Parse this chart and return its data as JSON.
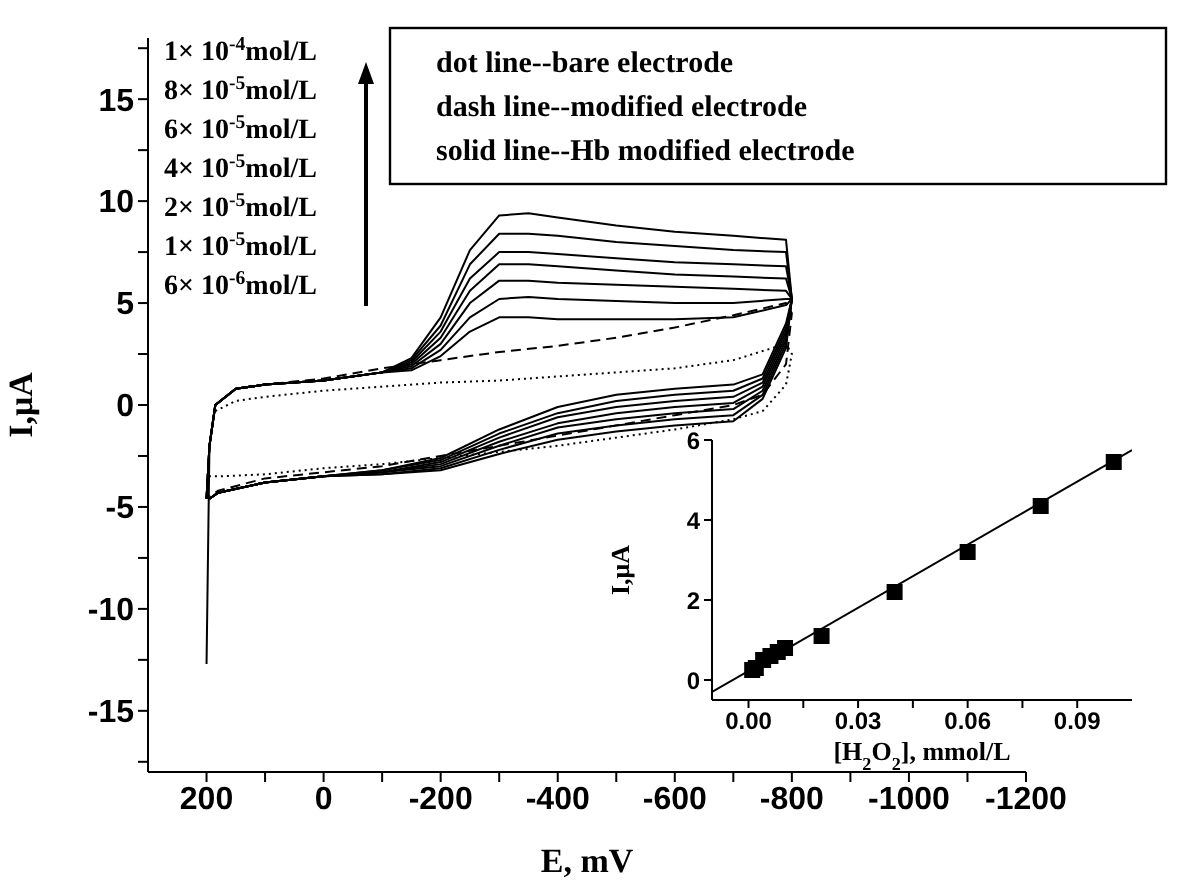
{
  "chart_data": [
    {
      "type": "line",
      "xlabel": "E, mV",
      "ylabel": "I,μA",
      "xlim": [
        300,
        -1200
      ],
      "xticks": [
        200,
        {
          "value": 100,
          "label": null
        },
        0,
        {
          "value": -100,
          "label": null
        },
        -200,
        {
          "value": -300,
          "label": null
        },
        -400,
        {
          "value": -500,
          "label": null
        },
        -600,
        {
          "value": -700,
          "label": null
        },
        -800,
        {
          "value": -900,
          "label": null
        },
        -1000,
        {
          "value": -1100,
          "label": null
        },
        -1200
      ],
      "ylim": [
        -18,
        18
      ],
      "yticks": [
        {
          "value": -17.5,
          "label": null
        },
        -15,
        {
          "value": -12.5,
          "label": null
        },
        -10,
        {
          "value": -7.5,
          "label": null
        },
        -5,
        {
          "value": -2.5,
          "label": null
        },
        0,
        {
          "value": 2.5,
          "label": null
        },
        5,
        {
          "value": 7.5,
          "label": null
        },
        10,
        {
          "value": 12.5,
          "label": null
        },
        15,
        {
          "value": 17.5,
          "label": null
        }
      ],
      "marker": "none",
      "annotations": [
        "dot line--bare electrode",
        "dash line--modified electrode",
        "solid line--Hb modified electrode",
        "1× 10$^{-4}$mol/L",
        "8× 10$^{-5}$mol/L",
        "6× 10$^{-5}$mol/L",
        "4× 10$^{-5}$mol/L",
        "2× 10$^{-5}$mol/L",
        "1× 10$^{-5}$mol/L",
        "6× 10$^{-6}$mol/L"
      ],
      "series": [
        {
          "color": "#000000",
          "line_style": "solid",
          "x": [
            200,
            195,
            185,
            150,
            100,
            0,
            -100,
            -150,
            -200,
            -250,
            -300,
            -350,
            -400,
            -500,
            -600,
            -700,
            -790,
            -800,
            -790,
            -750,
            -700,
            -600,
            -500,
            -400,
            -300,
            -200,
            -100,
            0,
            100,
            180,
            195
          ],
          "values": [
            -12.7,
            -2.0,
            0.0,
            0.8,
            1.0,
            1.2,
            1.6,
            2.3,
            4.3,
            7.6,
            9.3,
            9.4,
            9.2,
            8.8,
            8.5,
            8.3,
            8.1,
            5.2,
            4.0,
            1.5,
            1.0,
            0.8,
            0.5,
            -0.1,
            -1.2,
            -2.6,
            -3.2,
            -3.5,
            -3.8,
            -4.3,
            -4.6
          ]
        },
        {
          "color": "#000000",
          "line_style": "solid",
          "x": [
            200,
            195,
            185,
            150,
            100,
            0,
            -100,
            -150,
            -200,
            -250,
            -300,
            -350,
            -400,
            -500,
            -600,
            -700,
            -790,
            -800,
            -790,
            -750,
            -700,
            -600,
            -500,
            -400,
            -300,
            -200,
            -100,
            0,
            100,
            180,
            195
          ],
          "values": [
            -4.6,
            -2.0,
            0.0,
            0.8,
            1.0,
            1.2,
            1.6,
            2.2,
            3.9,
            6.9,
            8.4,
            8.4,
            8.3,
            8.0,
            7.8,
            7.6,
            7.5,
            5.2,
            3.8,
            1.3,
            0.7,
            0.5,
            0.2,
            -0.4,
            -1.4,
            -2.7,
            -3.2,
            -3.5,
            -3.8,
            -4.3,
            -4.6
          ]
        },
        {
          "color": "#000000",
          "line_style": "solid",
          "x": [
            200,
            195,
            185,
            150,
            100,
            0,
            -100,
            -150,
            -200,
            -250,
            -300,
            -350,
            -400,
            -500,
            -600,
            -700,
            -790,
            -800,
            -790,
            -750,
            -700,
            -600,
            -500,
            -400,
            -300,
            -200,
            -100,
            0,
            100,
            180,
            195
          ],
          "values": [
            -4.6,
            -2.0,
            0.0,
            0.8,
            1.0,
            1.2,
            1.6,
            2.1,
            3.6,
            6.2,
            7.5,
            7.5,
            7.4,
            7.2,
            7.0,
            6.9,
            6.8,
            5.2,
            3.6,
            1.1,
            0.4,
            0.2,
            -0.1,
            -0.6,
            -1.6,
            -2.8,
            -3.3,
            -3.5,
            -3.8,
            -4.3,
            -4.6
          ]
        },
        {
          "color": "#000000",
          "line_style": "solid",
          "x": [
            200,
            195,
            185,
            150,
            100,
            0,
            -100,
            -150,
            -200,
            -250,
            -300,
            -350,
            -400,
            -500,
            -600,
            -700,
            -790,
            -800,
            -790,
            -750,
            -700,
            -600,
            -500,
            -400,
            -300,
            -200,
            -100,
            0,
            100,
            180,
            195
          ],
          "values": [
            -4.6,
            -2.0,
            0.0,
            0.8,
            1.0,
            1.2,
            1.6,
            2.0,
            3.3,
            5.6,
            6.9,
            6.9,
            6.8,
            6.6,
            6.4,
            6.3,
            6.2,
            5.2,
            3.4,
            0.9,
            0.1,
            -0.1,
            -0.4,
            -0.9,
            -1.8,
            -2.9,
            -3.3,
            -3.5,
            -3.8,
            -4.3,
            -4.6
          ]
        },
        {
          "color": "#000000",
          "line_style": "solid",
          "x": [
            200,
            195,
            185,
            150,
            100,
            0,
            -100,
            -150,
            -200,
            -250,
            -300,
            -350,
            -400,
            -500,
            -600,
            -700,
            -790,
            -800,
            -790,
            -750,
            -700,
            -600,
            -500,
            -400,
            -300,
            -200,
            -100,
            0,
            100,
            180,
            195
          ],
          "values": [
            -4.6,
            -2.0,
            0.0,
            0.8,
            1.0,
            1.2,
            1.6,
            1.9,
            3.0,
            5.0,
            6.1,
            6.1,
            6.0,
            5.9,
            5.8,
            5.7,
            5.6,
            5.2,
            3.2,
            0.7,
            -0.2,
            -0.4,
            -0.7,
            -1.1,
            -2.0,
            -3.0,
            -3.3,
            -3.5,
            -3.8,
            -4.3,
            -4.6
          ]
        },
        {
          "color": "#000000",
          "line_style": "solid",
          "x": [
            200,
            195,
            185,
            150,
            100,
            0,
            -100,
            -150,
            -200,
            -250,
            -300,
            -350,
            -400,
            -500,
            -600,
            -700,
            -790,
            -800,
            -790,
            -750,
            -700,
            -600,
            -500,
            -400,
            -300,
            -200,
            -100,
            0,
            100,
            180,
            195
          ],
          "values": [
            -4.6,
            -2.0,
            0.0,
            0.8,
            1.0,
            1.2,
            1.6,
            1.8,
            2.7,
            4.3,
            5.2,
            5.3,
            5.2,
            5.1,
            5.0,
            5.0,
            5.2,
            5.2,
            3.0,
            0.5,
            -0.5,
            -0.7,
            -1.0,
            -1.4,
            -2.2,
            -3.1,
            -3.4,
            -3.5,
            -3.8,
            -4.3,
            -4.6
          ]
        },
        {
          "color": "#000000",
          "line_style": "solid",
          "x": [
            200,
            195,
            185,
            150,
            100,
            0,
            -100,
            -150,
            -200,
            -250,
            -300,
            -350,
            -400,
            -500,
            -600,
            -700,
            -790,
            -800,
            -790,
            -750,
            -700,
            -600,
            -500,
            -400,
            -300,
            -200,
            -100,
            0,
            100,
            180,
            195
          ],
          "values": [
            -4.6,
            -2.0,
            0.0,
            0.8,
            1.0,
            1.2,
            1.6,
            1.7,
            2.4,
            3.6,
            4.3,
            4.3,
            4.2,
            4.2,
            4.2,
            4.3,
            4.9,
            5.2,
            2.8,
            0.3,
            -0.8,
            -1.0,
            -1.3,
            -1.7,
            -2.4,
            -3.2,
            -3.4,
            -3.5,
            -3.8,
            -4.3,
            -4.6
          ]
        },
        {
          "color": "#000000",
          "line_style": "dashed",
          "x": [
            185,
            150,
            100,
            0,
            -100,
            -200,
            -300,
            -400,
            -500,
            -600,
            -700,
            -790,
            -800,
            -790,
            -750,
            -700,
            -600,
            -500,
            -400,
            -300,
            -200,
            -100,
            0,
            100,
            180,
            195
          ],
          "values": [
            0.0,
            0.8,
            1.0,
            1.3,
            1.8,
            2.2,
            2.6,
            2.9,
            3.3,
            3.8,
            4.4,
            5.0,
            4.5,
            2.0,
            0.5,
            0.0,
            -0.5,
            -1.0,
            -1.5,
            -2.0,
            -2.5,
            -3.0,
            -3.3,
            -3.6,
            -4.2,
            -4.5
          ]
        },
        {
          "color": "#000000",
          "line_style": "dotted",
          "x": [
            185,
            150,
            100,
            0,
            -100,
            -200,
            -300,
            -400,
            -500,
            -600,
            -700,
            -790,
            -800,
            -790,
            -750,
            -700,
            -600,
            -500,
            -400,
            -300,
            -200,
            -100,
            0,
            100,
            180,
            195
          ],
          "values": [
            -0.3,
            0.2,
            0.4,
            0.7,
            0.9,
            1.1,
            1.2,
            1.4,
            1.6,
            1.8,
            2.2,
            3.0,
            2.5,
            1.0,
            -0.3,
            -0.7,
            -1.2,
            -1.6,
            -2.0,
            -2.3,
            -2.6,
            -2.9,
            -3.1,
            -3.4,
            -3.5,
            -3.5
          ]
        }
      ]
    },
    {
      "type": "scatter",
      "xlabel": "[H$_{2}$O$_{2}$], mmol/L",
      "ylabel": "I,μA",
      "xlim": [
        -0.01,
        0.105
      ],
      "xticks": [
        {
          "value": 0,
          "label": "0.00"
        },
        {
          "value": 0.015,
          "label": null
        },
        {
          "value": 0.03,
          "label": "0.03"
        },
        {
          "value": 0.045,
          "label": null
        },
        {
          "value": 0.06,
          "label": "0.06"
        },
        {
          "value": 0.075,
          "label": null
        },
        {
          "value": 0.09,
          "label": "0.09"
        }
      ],
      "ylim": [
        -0.5,
        6
      ],
      "yticks": [
        0,
        2,
        4,
        6
      ],
      "series": [
        {
          "type": "scatter",
          "marker": "square",
          "color": "#000000",
          "x": [
            0.001,
            0.002,
            0.004,
            0.006,
            0.008,
            0.01,
            0.02,
            0.04,
            0.06,
            0.08,
            0.1
          ],
          "values": [
            0.25,
            0.3,
            0.5,
            0.6,
            0.7,
            0.8,
            1.1,
            2.2,
            3.2,
            4.35,
            5.45
          ]
        },
        {
          "type": "line",
          "color": "#000000",
          "x": [
            -0.01,
            0.105
          ],
          "values": [
            -0.3,
            5.75
          ]
        }
      ]
    }
  ]
}
